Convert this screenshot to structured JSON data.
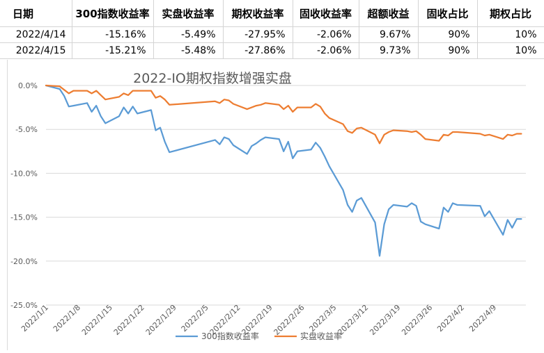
{
  "table": {
    "headers": [
      "日期",
      "300指数收益率",
      "实盘收益率",
      "期权收益率",
      "固收收益率",
      "超额收益",
      "固收占比",
      "期权占比"
    ],
    "rows": [
      [
        "2022/4/14",
        "-15.16%",
        "-5.49%",
        "-27.95%",
        "-2.06%",
        "9.67%",
        "90%",
        "10%"
      ],
      [
        "2022/4/15",
        "-15.21%",
        "-5.48%",
        "-27.86%",
        "-2.06%",
        "9.73%",
        "90%",
        "10%"
      ]
    ]
  },
  "chart_data": {
    "type": "line",
    "title": "2022-IO期权指数增强实盘",
    "x_ticks": [
      "2022/1/1",
      "2022/1/8",
      "2022/1/15",
      "2022/1/22",
      "2022/1/29",
      "2022/2/5",
      "2022/2/12",
      "2022/2/19",
      "2022/2/26",
      "2022/3/5",
      "2022/3/12",
      "2022/3/19",
      "2022/3/26",
      "2022/4/2",
      "2022/4/9"
    ],
    "x_range": [
      "2022/1/1",
      "2022/4/16"
    ],
    "y_ticks": [
      "0.0%",
      "-5.0%",
      "-10.0%",
      "-15.0%",
      "-20.0%",
      "-25.0%"
    ],
    "ylim": [
      -25,
      0
    ],
    "y_unit": "%",
    "grid": true,
    "legend": "bottom",
    "series": [
      {
        "name": "300指数收益率",
        "color": "#5b9bd5",
        "x": [
          "2022/1/1",
          "2022/1/4",
          "2022/1/5",
          "2022/1/6",
          "2022/1/7",
          "2022/1/10",
          "2022/1/11",
          "2022/1/12",
          "2022/1/13",
          "2022/1/14",
          "2022/1/17",
          "2022/1/18",
          "2022/1/19",
          "2022/1/20",
          "2022/1/21",
          "2022/1/24",
          "2022/1/25",
          "2022/1/26",
          "2022/1/27",
          "2022/1/28",
          "2022/2/7",
          "2022/2/8",
          "2022/2/9",
          "2022/2/10",
          "2022/2/11",
          "2022/2/14",
          "2022/2/15",
          "2022/2/16",
          "2022/2/17",
          "2022/2/18",
          "2022/2/21",
          "2022/2/22",
          "2022/2/23",
          "2022/2/24",
          "2022/2/25",
          "2022/2/28",
          "2022/3/1",
          "2022/3/2",
          "2022/3/3",
          "2022/3/4",
          "2022/3/7",
          "2022/3/8",
          "2022/3/9",
          "2022/3/10",
          "2022/3/11",
          "2022/3/14",
          "2022/3/15",
          "2022/3/16",
          "2022/3/17",
          "2022/3/18",
          "2022/3/21",
          "2022/3/22",
          "2022/3/23",
          "2022/3/24",
          "2022/3/25",
          "2022/3/28",
          "2022/3/29",
          "2022/3/30",
          "2022/3/31",
          "2022/4/1",
          "2022/4/6",
          "2022/4/7",
          "2022/4/8",
          "2022/4/11",
          "2022/4/12",
          "2022/4/13",
          "2022/4/14",
          "2022/4/15"
        ],
        "values": [
          0.0,
          -0.4,
          -1.2,
          -2.4,
          -2.3,
          -2.0,
          -3.0,
          -2.3,
          -3.5,
          -4.3,
          -3.5,
          -2.5,
          -3.2,
          -2.4,
          -3.2,
          -2.8,
          -5.1,
          -4.8,
          -6.4,
          -7.6,
          -6.2,
          -6.7,
          -5.9,
          -6.1,
          -6.8,
          -7.8,
          -6.9,
          -6.6,
          -6.2,
          -5.9,
          -6.1,
          -7.5,
          -6.4,
          -8.3,
          -7.5,
          -7.3,
          -6.5,
          -7.1,
          -8.1,
          -9.2,
          -11.9,
          -13.6,
          -14.4,
          -13.1,
          -12.8,
          -15.6,
          -19.4,
          -15.8,
          -14.1,
          -13.6,
          -13.8,
          -13.4,
          -13.7,
          -15.5,
          -15.8,
          -16.3,
          -13.9,
          -14.4,
          -13.4,
          -13.6,
          -13.7,
          -14.9,
          -14.3,
          -17.0,
          -15.3,
          -16.2,
          -15.2,
          -15.2
        ]
      },
      {
        "name": "实盘收益率",
        "color": "#ed7d31",
        "x": [
          "2022/1/1",
          "2022/1/4",
          "2022/1/5",
          "2022/1/6",
          "2022/1/7",
          "2022/1/10",
          "2022/1/11",
          "2022/1/12",
          "2022/1/13",
          "2022/1/14",
          "2022/1/17",
          "2022/1/18",
          "2022/1/19",
          "2022/1/20",
          "2022/1/21",
          "2022/1/24",
          "2022/1/25",
          "2022/1/26",
          "2022/1/27",
          "2022/1/28",
          "2022/2/7",
          "2022/2/8",
          "2022/2/9",
          "2022/2/10",
          "2022/2/11",
          "2022/2/14",
          "2022/2/15",
          "2022/2/16",
          "2022/2/17",
          "2022/2/18",
          "2022/2/21",
          "2022/2/22",
          "2022/2/23",
          "2022/2/24",
          "2022/2/25",
          "2022/2/28",
          "2022/3/1",
          "2022/3/2",
          "2022/3/3",
          "2022/3/4",
          "2022/3/7",
          "2022/3/8",
          "2022/3/9",
          "2022/3/10",
          "2022/3/11",
          "2022/3/14",
          "2022/3/15",
          "2022/3/16",
          "2022/3/17",
          "2022/3/18",
          "2022/3/21",
          "2022/3/22",
          "2022/3/23",
          "2022/3/24",
          "2022/3/25",
          "2022/3/28",
          "2022/3/29",
          "2022/3/30",
          "2022/3/31",
          "2022/4/1",
          "2022/4/6",
          "2022/4/7",
          "2022/4/8",
          "2022/4/11",
          "2022/4/12",
          "2022/4/13",
          "2022/4/14",
          "2022/4/15"
        ],
        "values": [
          0.0,
          -0.1,
          -0.5,
          -0.9,
          -0.6,
          -0.6,
          -0.9,
          -0.6,
          -1.1,
          -1.6,
          -1.3,
          -0.9,
          -1.1,
          -0.6,
          -0.6,
          -0.6,
          -1.4,
          -1.2,
          -1.6,
          -2.2,
          -1.8,
          -2.0,
          -1.6,
          -1.7,
          -2.1,
          -2.7,
          -2.5,
          -2.3,
          -2.2,
          -2.0,
          -2.2,
          -2.7,
          -2.3,
          -3.0,
          -2.5,
          -2.5,
          -2.1,
          -2.4,
          -3.2,
          -3.7,
          -4.4,
          -5.2,
          -5.4,
          -4.9,
          -4.8,
          -5.6,
          -6.6,
          -5.6,
          -5.3,
          -5.1,
          -5.2,
          -5.3,
          -5.2,
          -5.6,
          -6.1,
          -6.3,
          -5.6,
          -5.7,
          -5.3,
          -5.3,
          -5.5,
          -5.7,
          -5.6,
          -6.1,
          -5.6,
          -5.7,
          -5.5,
          -5.5
        ]
      }
    ]
  }
}
